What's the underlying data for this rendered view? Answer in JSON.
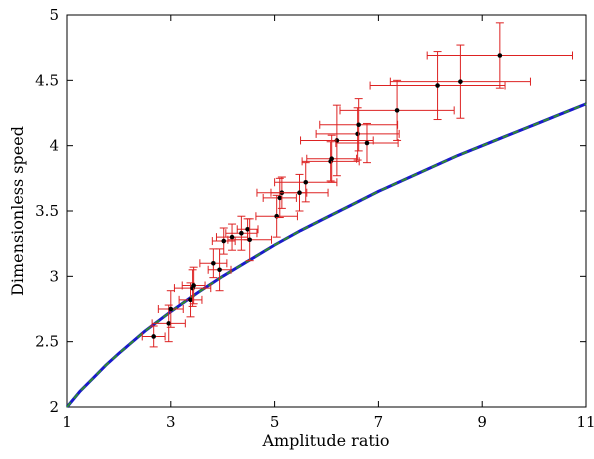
{
  "chart_data": {
    "type": "scatter",
    "title": "",
    "xlabel": "Amplitude ratio",
    "ylabel": "Dimensionless speed",
    "xlim": [
      1,
      11
    ],
    "ylim": [
      2,
      5
    ],
    "x_ticks": [
      1,
      3,
      5,
      7,
      9,
      11
    ],
    "x_tick_labels": [
      "1",
      "3",
      "5",
      "7",
      "9",
      "11"
    ],
    "y_ticks": [
      2,
      2.5,
      3,
      3.5,
      4,
      4.5,
      5
    ],
    "y_tick_labels": [
      "2",
      "2.5",
      "3",
      "3.5",
      "4",
      "4.5",
      "5"
    ],
    "grid": false,
    "legend": "none",
    "colors": {
      "points": "#000000",
      "error_bars": "#dd2222",
      "curve_solid": "#1a1acc",
      "curve_dashed": "#2e8b2e"
    },
    "curve": {
      "description_in_legend": "",
      "samples": [
        [
          1.0,
          2.0
        ],
        [
          1.25,
          2.12
        ],
        [
          1.5,
          2.22
        ],
        [
          1.75,
          2.32
        ],
        [
          2.0,
          2.41
        ],
        [
          2.5,
          2.58
        ],
        [
          3.0,
          2.73
        ],
        [
          3.5,
          2.87
        ],
        [
          4.0,
          3.0
        ],
        [
          4.5,
          3.12
        ],
        [
          5.0,
          3.24
        ],
        [
          5.5,
          3.35
        ],
        [
          6.0,
          3.45
        ],
        [
          6.5,
          3.55
        ],
        [
          7.0,
          3.65
        ],
        [
          7.5,
          3.74
        ],
        [
          8.0,
          3.83
        ],
        [
          8.5,
          3.92
        ],
        [
          9.0,
          4.0
        ],
        [
          9.5,
          4.08
        ],
        [
          10.0,
          4.16
        ],
        [
          10.5,
          4.24
        ],
        [
          11.0,
          4.32
        ]
      ]
    },
    "points": [
      {
        "x": 2.67,
        "y": 2.54,
        "xerr": 0.22,
        "yerr": 0.08
      },
      {
        "x": 2.96,
        "y": 2.64,
        "xerr": 0.32,
        "yerr": 0.14
      },
      {
        "x": 3.0,
        "y": 2.75,
        "xerr": 0.24,
        "yerr": 0.14
      },
      {
        "x": 3.38,
        "y": 2.82,
        "xerr": 0.22,
        "yerr": 0.13
      },
      {
        "x": 3.42,
        "y": 2.91,
        "xerr": 0.35,
        "yerr": 0.14
      },
      {
        "x": 3.44,
        "y": 2.93,
        "xerr": 0.22,
        "yerr": 0.14
      },
      {
        "x": 3.82,
        "y": 3.1,
        "xerr": 0.26,
        "yerr": 0.11
      },
      {
        "x": 3.94,
        "y": 3.05,
        "xerr": 0.22,
        "yerr": 0.16
      },
      {
        "x": 4.02,
        "y": 3.27,
        "xerr": 0.22,
        "yerr": 0.1
      },
      {
        "x": 4.18,
        "y": 3.3,
        "xerr": 0.3,
        "yerr": 0.1
      },
      {
        "x": 4.36,
        "y": 3.33,
        "xerr": 0.3,
        "yerr": 0.13
      },
      {
        "x": 4.48,
        "y": 3.36,
        "xerr": 0.2,
        "yerr": 0.08
      },
      {
        "x": 4.52,
        "y": 3.28,
        "xerr": 0.42,
        "yerr": 0.16
      },
      {
        "x": 5.04,
        "y": 3.46,
        "xerr": 0.4,
        "yerr": 0.16
      },
      {
        "x": 5.1,
        "y": 3.6,
        "xerr": 0.32,
        "yerr": 0.15
      },
      {
        "x": 5.14,
        "y": 3.64,
        "xerr": 0.48,
        "yerr": 0.12
      },
      {
        "x": 5.48,
        "y": 3.64,
        "xerr": 0.55,
        "yerr": 0.14
      },
      {
        "x": 5.6,
        "y": 3.72,
        "xerr": 0.6,
        "yerr": 0.15
      },
      {
        "x": 6.08,
        "y": 3.88,
        "xerr": 0.55,
        "yerr": 0.15
      },
      {
        "x": 6.1,
        "y": 3.9,
        "xerr": 0.48,
        "yerr": 0.18
      },
      {
        "x": 6.2,
        "y": 4.04,
        "xerr": 0.7,
        "yerr": 0.27
      },
      {
        "x": 6.6,
        "y": 4.09,
        "xerr": 0.8,
        "yerr": 0.2
      },
      {
        "x": 6.62,
        "y": 4.16,
        "xerr": 0.75,
        "yerr": 0.2
      },
      {
        "x": 6.78,
        "y": 4.02,
        "xerr": 0.6,
        "yerr": 0.15
      },
      {
        "x": 7.36,
        "y": 4.27,
        "xerr": 1.1,
        "yerr": 0.23
      },
      {
        "x": 8.14,
        "y": 4.46,
        "xerr": 1.3,
        "yerr": 0.26
      },
      {
        "x": 8.58,
        "y": 4.49,
        "xerr": 1.35,
        "yerr": 0.28
      },
      {
        "x": 9.34,
        "y": 4.69,
        "xerr": 1.4,
        "yerr": 0.25
      }
    ]
  }
}
